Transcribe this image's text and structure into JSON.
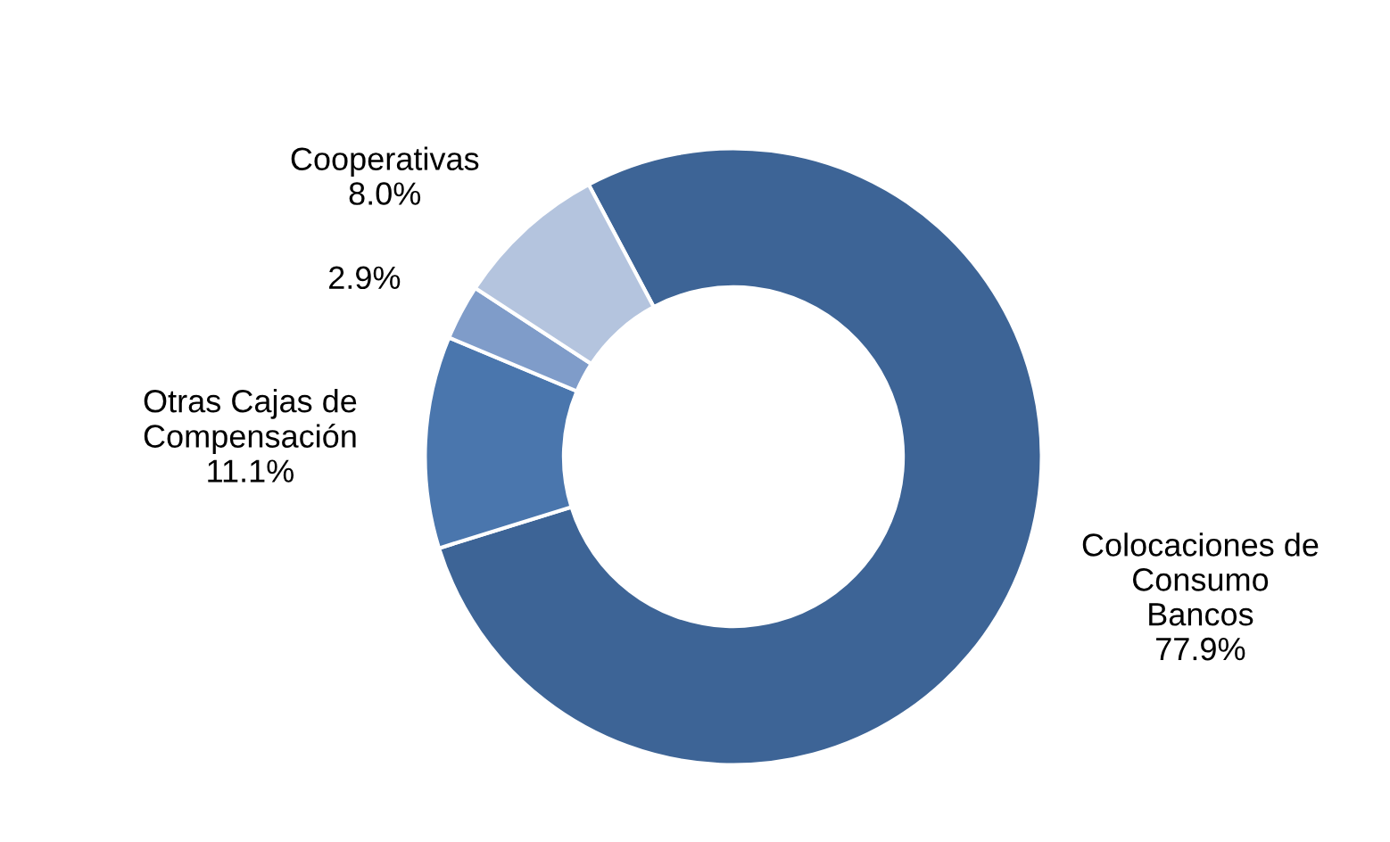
{
  "chart_data": {
    "type": "donut",
    "categories": [
      "Colocaciones de\nConsumo\nBancos",
      "Otras Cajas de\nCompensación",
      null,
      "Cooperativas"
    ],
    "values": [
      77.9,
      11.1,
      2.9,
      8.0
    ],
    "value_labels": [
      "77.9%",
      "11.1%",
      "2.9%",
      "8.0%"
    ],
    "colors": [
      "#3d6496",
      "#4a76ad",
      "#7f9cc9",
      "#b4c4de"
    ]
  }
}
